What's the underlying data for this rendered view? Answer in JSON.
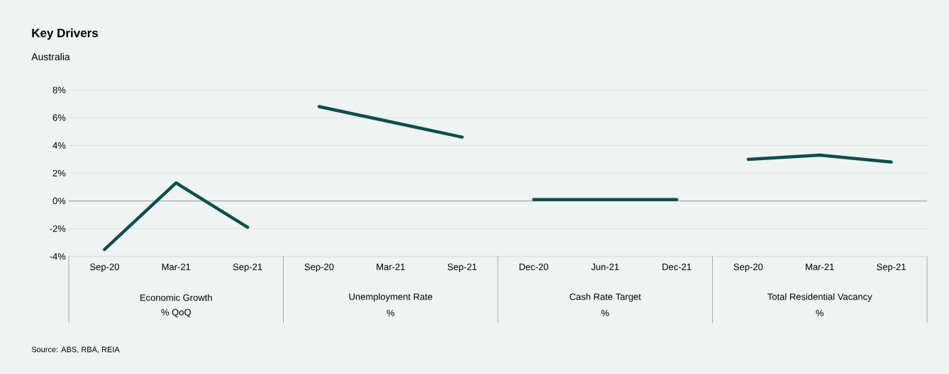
{
  "chart_data": {
    "type": "line",
    "title": "Key Drivers",
    "subtitle": "Australia",
    "categories": [
      "Sep-20",
      "Mar-21",
      "Sep-21",
      "Sep-20",
      "Mar-21",
      "Sep-21",
      "Dec-20",
      "Jun-21",
      "Dec-21",
      "Sep-20",
      "Mar-21",
      "Sep-21"
    ],
    "series": [
      {
        "color": "#0b4f4c",
        "values": [
          -3.5,
          1.3,
          -1.9,
          null,
          null,
          null,
          null,
          null,
          null,
          null,
          null,
          null
        ]
      },
      {
        "color": "#0b4f4c",
        "values": [
          null,
          null,
          null,
          6.8,
          5.7,
          4.6,
          null,
          null,
          null,
          null,
          null,
          null
        ]
      },
      {
        "color": "#0b4f4c",
        "values": [
          null,
          null,
          null,
          null,
          null,
          null,
          0.1,
          0.1,
          0.1,
          null,
          null,
          null
        ]
      },
      {
        "color": "#0b4f4c",
        "values": [
          null,
          null,
          null,
          null,
          null,
          null,
          null,
          null,
          null,
          3.0,
          3.3,
          2.8
        ]
      }
    ],
    "ylim": [
      -4,
      8
    ],
    "yticks": [
      {
        "value": -4,
        "label": "-4%"
      },
      {
        "value": -2,
        "label": "-2%"
      },
      {
        "value": 0,
        "label": "0%"
      },
      {
        "value": 2,
        "label": "2%"
      },
      {
        "value": 4,
        "label": "4%"
      },
      {
        "value": 6,
        "label": "6%"
      },
      {
        "value": 8,
        "label": "8%"
      }
    ],
    "grid": "y",
    "marker": "none",
    "line_style": "solid",
    "ref_lines": [
      {
        "axis": "y",
        "value": 0,
        "color": "#999999"
      }
    ],
    "annotations": [
      "Economic Growth",
      "% QoQ",
      "Unemployment Rate",
      "%",
      "Cash Rate Target",
      "%",
      "Total Residential Vacancy",
      "%",
      "Source: ABS, RBA, REIA"
    ]
  }
}
